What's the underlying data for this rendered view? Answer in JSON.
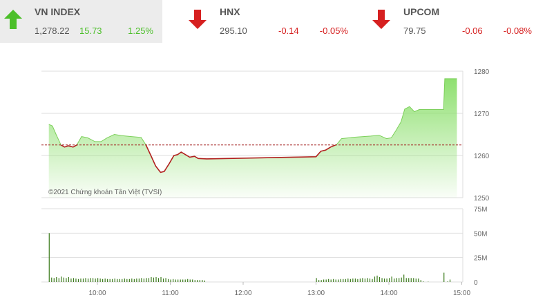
{
  "indices": [
    {
      "name": "VN INDEX",
      "value": "1,278.22",
      "change": "15.73",
      "percent": "1.25%",
      "direction": "up",
      "icon": "arrow-up-icon"
    },
    {
      "name": "HNX",
      "value": "295.10",
      "change": "-0.14",
      "percent": "-0.05%",
      "direction": "down",
      "icon": "arrow-down-icon"
    },
    {
      "name": "UPCOM",
      "value": "79.75",
      "change": "-0.06",
      "percent": "-0.08%",
      "direction": "down",
      "icon": "arrow-down-icon"
    }
  ],
  "colors": {
    "up": "#4cbf2a",
    "down": "#d62020",
    "fill": "#8fe070",
    "below_line": "#b22020",
    "volume": "#3a7a1a"
  },
  "chart_data": [
    {
      "type": "area",
      "title": "",
      "watermark": "©2021 Chứng khoán Tân Việt (TVSI)",
      "reference": 1262.49,
      "ylim": [
        1250,
        1280
      ],
      "yticks": [
        "1280",
        "1270",
        "1260",
        "1250"
      ],
      "points": [
        [
          "09:20",
          1267.4
        ],
        [
          "09:23",
          1267
        ],
        [
          "09:26",
          1265
        ],
        [
          "09:30",
          1262.5
        ],
        [
          "09:33",
          1262
        ],
        [
          "09:36",
          1262.3
        ],
        [
          "09:40",
          1262
        ],
        [
          "09:43",
          1262.5
        ],
        [
          "09:47",
          1264.5
        ],
        [
          "09:52",
          1264.2
        ],
        [
          "09:58",
          1263.3
        ],
        [
          "10:03",
          1263.3
        ],
        [
          "10:08",
          1264.2
        ],
        [
          "10:14",
          1265
        ],
        [
          "10:20",
          1264.7
        ],
        [
          "10:28",
          1264.5
        ],
        [
          "10:36",
          1264.3
        ],
        [
          "10:40",
          1262.5
        ],
        [
          "10:44",
          1260
        ],
        [
          "10:48",
          1257.5
        ],
        [
          "10:52",
          1256
        ],
        [
          "10:55",
          1256.2
        ],
        [
          "10:59",
          1258
        ],
        [
          "11:03",
          1260
        ],
        [
          "11:06",
          1260.2
        ],
        [
          "11:09",
          1260.8
        ],
        [
          "11:12",
          1260.3
        ],
        [
          "11:16",
          1259.6
        ],
        [
          "11:20",
          1259.8
        ],
        [
          "11:23",
          1259.3
        ],
        [
          "11:30",
          1259.2
        ],
        [
          "13:00",
          1259.7
        ],
        [
          "13:04",
          1261
        ],
        [
          "13:08",
          1261.3
        ],
        [
          "13:12",
          1262
        ],
        [
          "13:17",
          1262.6
        ],
        [
          "13:21",
          1264
        ],
        [
          "13:30",
          1264.3
        ],
        [
          "13:45",
          1264.6
        ],
        [
          "13:52",
          1264.8
        ],
        [
          "13:58",
          1264
        ],
        [
          "14:02",
          1264.2
        ],
        [
          "14:06",
          1266
        ],
        [
          "14:10",
          1268
        ],
        [
          "14:13",
          1271
        ],
        [
          "14:17",
          1271.6
        ],
        [
          "14:21",
          1270.4
        ],
        [
          "14:25",
          1270.9
        ],
        [
          "14:45",
          1270.9
        ],
        [
          "14:46",
          1278.22
        ],
        [
          "14:56",
          1278.22
        ]
      ]
    },
    {
      "type": "bar",
      "yticks": [
        "75M",
        "50M",
        "25M",
        "0"
      ],
      "ylim": [
        0,
        75
      ],
      "xticks": [
        "10:00",
        "11:00",
        "12:00",
        "13:00",
        "14:00",
        "15:00"
      ],
      "volumes_millions": [
        [
          "09:20",
          50
        ],
        [
          "09:22",
          4.5
        ],
        [
          "09:24",
          4
        ],
        [
          "09:26",
          5
        ],
        [
          "09:28",
          4
        ],
        [
          "09:30",
          5.5
        ],
        [
          "09:32",
          4.5
        ],
        [
          "09:34",
          4
        ],
        [
          "09:36",
          5
        ],
        [
          "09:38",
          3.5
        ],
        [
          "09:40",
          4
        ],
        [
          "09:42",
          3.5
        ],
        [
          "09:44",
          3
        ],
        [
          "09:46",
          3.5
        ],
        [
          "09:48",
          3.5
        ],
        [
          "09:50",
          4
        ],
        [
          "09:52",
          3.5
        ],
        [
          "09:54",
          4
        ],
        [
          "09:56",
          4
        ],
        [
          "09:58",
          3.5
        ],
        [
          "10:00",
          4
        ],
        [
          "10:02",
          3.5
        ],
        [
          "10:04",
          3
        ],
        [
          "10:06",
          3.5
        ],
        [
          "10:08",
          3
        ],
        [
          "10:10",
          3
        ],
        [
          "10:12",
          3
        ],
        [
          "10:14",
          3.5
        ],
        [
          "10:16",
          3
        ],
        [
          "10:18",
          3
        ],
        [
          "10:20",
          3
        ],
        [
          "10:22",
          3.5
        ],
        [
          "10:24",
          3
        ],
        [
          "10:26",
          3
        ],
        [
          "10:28",
          3.5
        ],
        [
          "10:30",
          3
        ],
        [
          "10:32",
          3.5
        ],
        [
          "10:34",
          3.5
        ],
        [
          "10:36",
          4
        ],
        [
          "10:38",
          3.5
        ],
        [
          "10:40",
          4
        ],
        [
          "10:42",
          4
        ],
        [
          "10:44",
          5
        ],
        [
          "10:46",
          4.5
        ],
        [
          "10:48",
          5
        ],
        [
          "10:50",
          4
        ],
        [
          "10:52",
          5
        ],
        [
          "10:54",
          3.5
        ],
        [
          "10:56",
          4
        ],
        [
          "10:58",
          3
        ],
        [
          "11:00",
          2.5
        ],
        [
          "11:02",
          3
        ],
        [
          "11:04",
          2.5
        ],
        [
          "11:06",
          2.5
        ],
        [
          "11:08",
          2.5
        ],
        [
          "11:10",
          2.5
        ],
        [
          "11:12",
          2.5
        ],
        [
          "11:14",
          3
        ],
        [
          "11:16",
          2.5
        ],
        [
          "11:18",
          2.5
        ],
        [
          "11:20",
          2
        ],
        [
          "11:22",
          2
        ],
        [
          "11:24",
          2
        ],
        [
          "11:26",
          2
        ],
        [
          "11:28",
          1.5
        ],
        [
          "13:00",
          4
        ],
        [
          "13:02",
          2
        ],
        [
          "13:04",
          2
        ],
        [
          "13:06",
          2.5
        ],
        [
          "13:08",
          2.5
        ],
        [
          "13:10",
          3
        ],
        [
          "13:12",
          2.5
        ],
        [
          "13:14",
          3
        ],
        [
          "13:16",
          2.5
        ],
        [
          "13:18",
          2.5
        ],
        [
          "13:20",
          3
        ],
        [
          "13:22",
          3
        ],
        [
          "13:24",
          3
        ],
        [
          "13:26",
          3.5
        ],
        [
          "13:28",
          3
        ],
        [
          "13:30",
          3.5
        ],
        [
          "13:32",
          3.5
        ],
        [
          "13:34",
          3
        ],
        [
          "13:36",
          3.5
        ],
        [
          "13:38",
          4
        ],
        [
          "13:40",
          3.5
        ],
        [
          "13:42",
          4
        ],
        [
          "13:44",
          3.5
        ],
        [
          "13:46",
          3
        ],
        [
          "13:48",
          5.5
        ],
        [
          "13:50",
          6.5
        ],
        [
          "13:52",
          5
        ],
        [
          "13:54",
          4
        ],
        [
          "13:56",
          3.5
        ],
        [
          "13:58",
          3.5
        ],
        [
          "14:00",
          4
        ],
        [
          "14:02",
          5.5
        ],
        [
          "14:04",
          3.5
        ],
        [
          "14:06",
          4
        ],
        [
          "14:08",
          4
        ],
        [
          "14:10",
          4.5
        ],
        [
          "14:12",
          7.5
        ],
        [
          "14:14",
          4
        ],
        [
          "14:16",
          4
        ],
        [
          "14:18",
          4
        ],
        [
          "14:20",
          4
        ],
        [
          "14:22",
          3.5
        ],
        [
          "14:24",
          3.5
        ],
        [
          "14:26",
          2
        ],
        [
          "14:28",
          0.5
        ],
        [
          "14:32",
          0.3
        ],
        [
          "14:45",
          9.5
        ],
        [
          "14:48",
          0.5
        ],
        [
          "14:50",
          2.5
        ]
      ]
    }
  ]
}
